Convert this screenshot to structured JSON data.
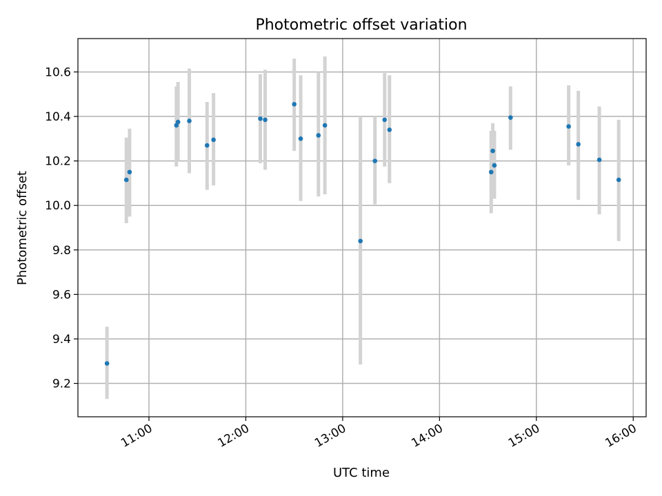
{
  "chart_data": {
    "type": "scatter",
    "title": "Photometric offset variation",
    "xlabel": "UTC time",
    "ylabel": "Photometric offset",
    "x_type": "time",
    "xlim": [
      "10:16",
      "16:08"
    ],
    "ylim": [
      9.05,
      10.75
    ],
    "x_ticks": [
      "11:00",
      "12:00",
      "13:00",
      "14:00",
      "15:00",
      "16:00"
    ],
    "y_ticks": [
      "9.2",
      "9.4",
      "9.6",
      "9.8",
      "10.0",
      "10.2",
      "10.4",
      "10.6"
    ],
    "grid": true,
    "marker_color": "#1f77b4",
    "errorbar_color": "#d3d3d3",
    "points": [
      {
        "x": "10:34",
        "y": 9.29,
        "ylow": 9.13,
        "yhigh": 9.455
      },
      {
        "x": "10:46",
        "y": 10.115,
        "ylow": 9.92,
        "yhigh": 10.305
      },
      {
        "x": "10:48",
        "y": 10.15,
        "ylow": 9.95,
        "yhigh": 10.345
      },
      {
        "x": "11:17",
        "y": 10.36,
        "ylow": 10.175,
        "yhigh": 10.535
      },
      {
        "x": "11:18",
        "y": 10.375,
        "ylow": 10.2,
        "yhigh": 10.555
      },
      {
        "x": "11:25",
        "y": 10.38,
        "ylow": 10.145,
        "yhigh": 10.615
      },
      {
        "x": "11:36",
        "y": 10.27,
        "ylow": 10.07,
        "yhigh": 10.465
      },
      {
        "x": "11:40",
        "y": 10.295,
        "ylow": 10.09,
        "yhigh": 10.505
      },
      {
        "x": "12:09",
        "y": 10.39,
        "ylow": 10.19,
        "yhigh": 10.59
      },
      {
        "x": "12:12",
        "y": 10.385,
        "ylow": 10.16,
        "yhigh": 10.61
      },
      {
        "x": "12:30",
        "y": 10.455,
        "ylow": 10.245,
        "yhigh": 10.66
      },
      {
        "x": "12:34",
        "y": 10.3,
        "ylow": 10.02,
        "yhigh": 10.585
      },
      {
        "x": "12:45",
        "y": 10.315,
        "ylow": 10.04,
        "yhigh": 10.6
      },
      {
        "x": "12:49",
        "y": 10.36,
        "ylow": 10.05,
        "yhigh": 10.67
      },
      {
        "x": "13:11",
        "y": 9.84,
        "ylow": 9.285,
        "yhigh": 10.4
      },
      {
        "x": "13:20",
        "y": 10.2,
        "ylow": 10.005,
        "yhigh": 10.4
      },
      {
        "x": "13:26",
        "y": 10.385,
        "ylow": 10.175,
        "yhigh": 10.595
      },
      {
        "x": "13:29",
        "y": 10.34,
        "ylow": 10.1,
        "yhigh": 10.585
      },
      {
        "x": "14:32",
        "y": 10.15,
        "ylow": 9.965,
        "yhigh": 10.335
      },
      {
        "x": "14:33",
        "y": 10.245,
        "ylow": 10.05,
        "yhigh": 10.37
      },
      {
        "x": "14:34",
        "y": 10.18,
        "ylow": 10.03,
        "yhigh": 10.335
      },
      {
        "x": "14:44",
        "y": 10.395,
        "ylow": 10.25,
        "yhigh": 10.535
      },
      {
        "x": "15:20",
        "y": 10.355,
        "ylow": 10.18,
        "yhigh": 10.54
      },
      {
        "x": "15:26",
        "y": 10.275,
        "ylow": 10.025,
        "yhigh": 10.515
      },
      {
        "x": "15:39",
        "y": 10.205,
        "ylow": 9.96,
        "yhigh": 10.445
      },
      {
        "x": "15:51",
        "y": 10.115,
        "ylow": 9.84,
        "yhigh": 10.385
      }
    ]
  }
}
